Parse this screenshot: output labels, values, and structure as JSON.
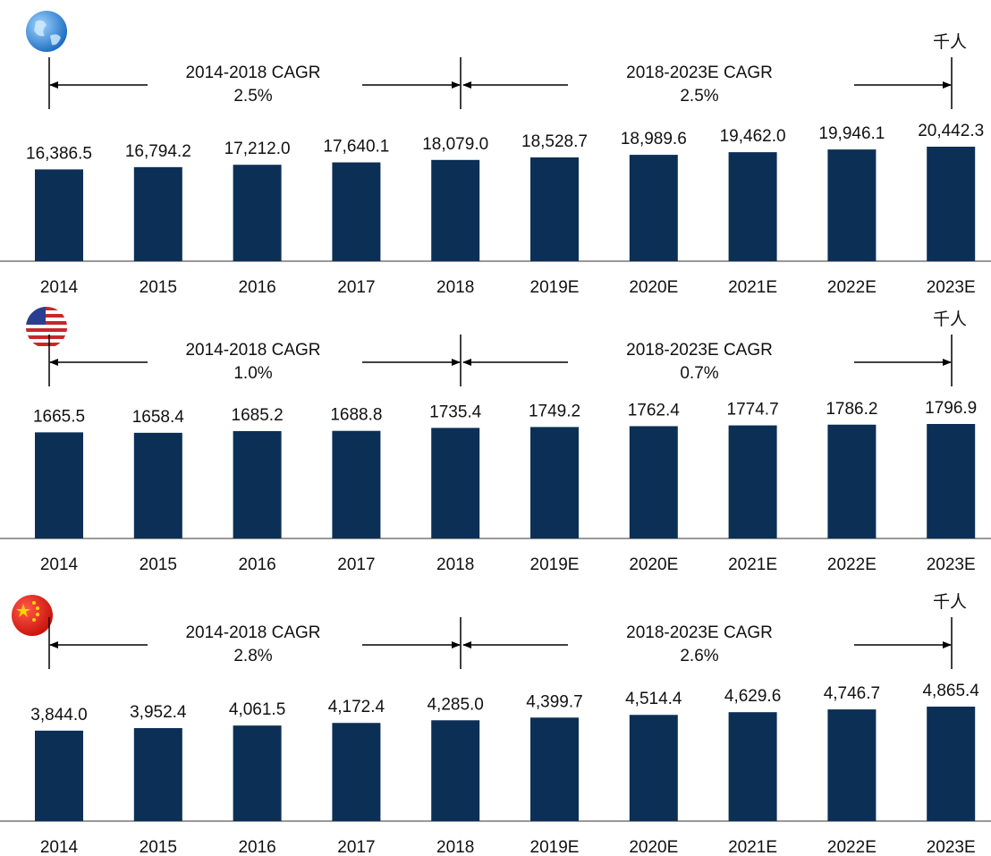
{
  "chart_data": [
    {
      "type": "bar",
      "unit": "千人",
      "color": "#0c2f56",
      "annotations": [
        "2014-2018 CAGR",
        "2.5%",
        "2018-2023E CAGR",
        "2.5%"
      ],
      "categories": [
        "2014",
        "2015",
        "2016",
        "2017",
        "2018",
        "2019E",
        "2020E",
        "2021E",
        "2022E",
        "2023E"
      ],
      "values": [
        16386.5,
        16794.2,
        17212.0,
        17640.1,
        18079.0,
        18528.7,
        18989.6,
        19462.0,
        19946.1,
        20442.3
      ],
      "value_labels": [
        "16,386.5",
        "16,794.2",
        "17,212.0",
        "17,640.1",
        "18,079.0",
        "18,528.7",
        "18,989.6",
        "19,462.0",
        "19,946.1",
        "20,442.3"
      ]
    },
    {
      "type": "bar",
      "unit": "千人",
      "color": "#0c2f56",
      "annotations": [
        "2014-2018 CAGR",
        "1.0%",
        "2018-2023E CAGR",
        "0.7%"
      ],
      "categories": [
        "2014",
        "2015",
        "2016",
        "2017",
        "2018",
        "2019E",
        "2020E",
        "2021E",
        "2022E",
        "2023E"
      ],
      "values": [
        1665.5,
        1658.4,
        1685.2,
        1688.8,
        1735.4,
        1749.2,
        1762.4,
        1774.7,
        1786.2,
        1796.9
      ]
    },
    {
      "type": "bar",
      "unit": "千人",
      "color": "#0c2f56",
      "annotations": [
        "2014-2018 CAGR",
        "2.8%",
        "2018-2023E CAGR",
        "2.6%"
      ],
      "categories": [
        "2014",
        "2015",
        "2016",
        "2017",
        "2018",
        "2019E",
        "2020E",
        "2021E",
        "2022E",
        "2023E"
      ],
      "values": [
        3844.0,
        3952.4,
        4061.5,
        4172.4,
        4285.0,
        4399.7,
        4514.4,
        4629.6,
        4746.7,
        4865.4
      ],
      "value_labels": [
        "3,844.0",
        "3,952.4",
        "4,061.5",
        "4,172.4",
        "4,285.0",
        "4,399.7",
        "4,514.4",
        "4,629.6",
        "4,746.7",
        "4,865.4"
      ]
    }
  ]
}
